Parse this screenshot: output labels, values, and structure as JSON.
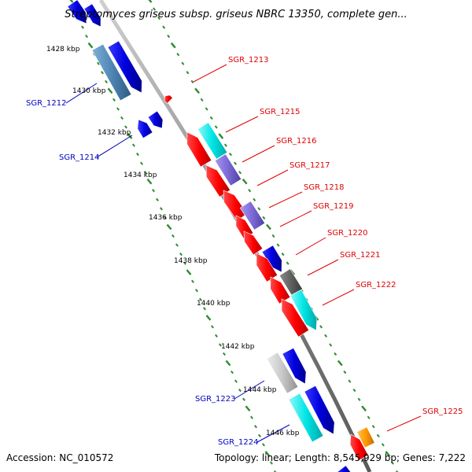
{
  "title": "Streptomyces griseus subsp. griseus NBRC 13350, complete gen...",
  "footer": {
    "accession": "Accession: NC_010572",
    "summary": "Topology: linear; Length: 8,545,929 bp; Genes: 7,222"
  },
  "scale_labels": [
    "1428 kbp",
    "1430 kbp",
    "1432 kbp",
    "1434 kbp",
    "1436 kbp",
    "1438 kbp",
    "1440 kbp",
    "1442 kbp",
    "1444 kbp",
    "1446 kbp"
  ],
  "gene_labels": {
    "left": [
      "SGR_1212",
      "SGR_1214",
      "SGR_1223",
      "SGR_1224"
    ],
    "right": [
      "SGR_1213",
      "SGR_1215",
      "SGR_1216",
      "SGR_1217",
      "SGR_1218",
      "SGR_1219",
      "SGR_1220",
      "SGR_1221",
      "SGR_1222",
      "SGR_1225"
    ]
  },
  "colors": {
    "backbone": "#8c8c8c",
    "ticks": "#2e8b2e",
    "red": "#ff0000",
    "blue": "#0000e0",
    "steel": "#4f86b6",
    "cyan": "#00e5e5",
    "purple": "#7b68d6",
    "gray": "#606060",
    "silver": "#c8c8c8",
    "orange": "#ff9a00",
    "left_label": "#0000c0",
    "right_label": "#e00000"
  }
}
